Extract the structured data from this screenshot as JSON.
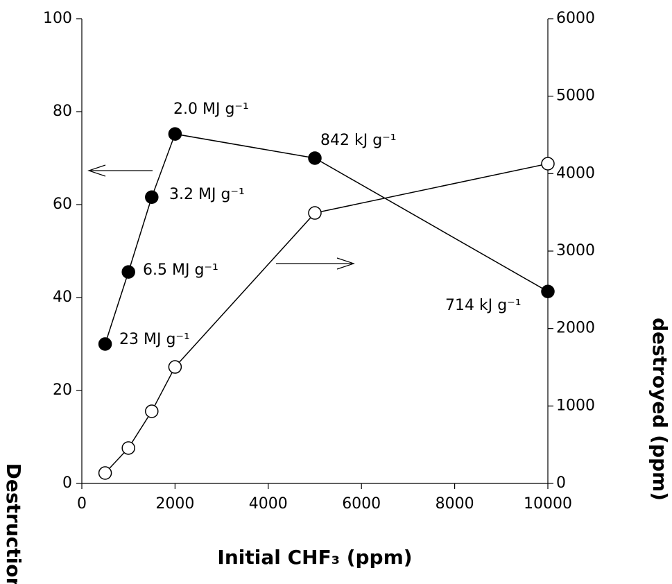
{
  "chart_data": {
    "type": "line",
    "x_label": "Initial CHF₃ (ppm)",
    "y_label": "Destruction",
    "y2_label": "destroyed (ppm)",
    "x": [
      500,
      1000,
      1500,
      2000,
      5000,
      10000
    ],
    "xlim": [
      0,
      10000
    ],
    "xticks": [
      0,
      2000,
      4000,
      6000,
      8000,
      10000
    ],
    "ylim": [
      0,
      100
    ],
    "yticks": [
      0,
      20,
      40,
      60,
      80,
      100
    ],
    "y2lim": [
      0,
      6000
    ],
    "y2ticks": [
      0,
      1000,
      2000,
      3000,
      4000,
      5000,
      6000
    ],
    "grid": false,
    "series": [
      {
        "color": "#000000",
        "marker": "filled",
        "values": [
          30,
          45.5,
          61.6,
          75.2,
          70,
          41.3
        ]
      },
      {
        "color": "#000000",
        "marker": "open",
        "axis": "y2",
        "values": [
          134,
          457,
          931,
          1504,
          3492,
          4128
        ]
      }
    ],
    "annotations": [
      "2.0 MJ g⁻¹",
      "842 kJ g⁻¹",
      "3.2 MJ g⁻¹",
      "6.5 MJ g⁻¹",
      "23 MJ g⁻¹",
      "714 kJ g⁻¹"
    ]
  }
}
